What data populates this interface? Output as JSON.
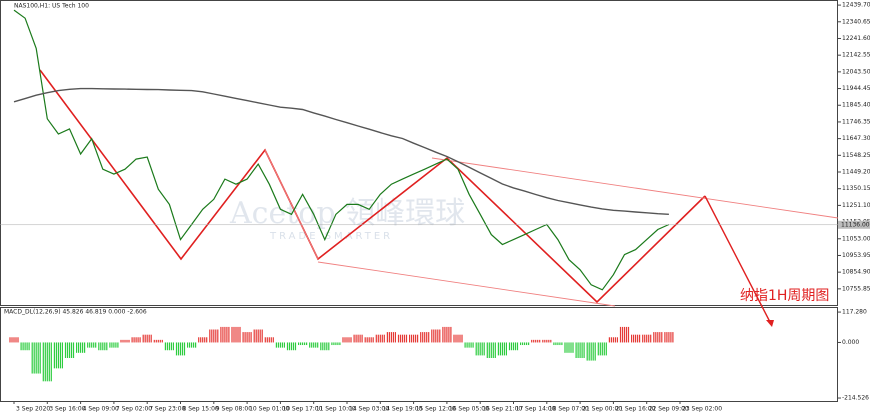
{
  "chart_data": [
    {
      "type": "line",
      "title": "NAS100,H1:  US Tech 100",
      "watermark": "Acetop 領峰環球",
      "watermark_sub": "TRADE SMARTER",
      "annotation": "纳指1H周期图",
      "categories": [
        "3 Sep 2020",
        null,
        null,
        "3 Sep 16:00",
        null,
        null,
        "4 Sep 09:00",
        null,
        null,
        "7 Sep 02:00",
        null,
        null,
        "7 Sep 23:00",
        null,
        null,
        "8 Sep 15:00",
        null,
        null,
        "9 Sep 08:00",
        null,
        null,
        "10 Sep 01:00",
        null,
        null,
        "10 Sep 17:00",
        null,
        null,
        "11 Sep 10:00",
        null,
        null,
        "14 Sep 03:00",
        null,
        null,
        "14 Sep 19:00",
        null,
        null,
        "15 Sep 12:00",
        null,
        null,
        "16 Sep 05:00",
        null,
        null,
        "16 Sep 21:00",
        null,
        null,
        "17 Sep 14:00",
        null,
        null,
        "18 Sep 07:00",
        null,
        null,
        "21 Sep 00:00",
        null,
        null,
        "21 Sep 16:00",
        null,
        null,
        "22 Sep 09:00",
        null,
        null,
        "23 Sep 02:00",
        null,
        null
      ],
      "series": [
        {
          "color": "#1b7a1b",
          "values": [
            12410,
            12362,
            12183,
            11765,
            11675,
            11705,
            11556,
            11646,
            11466,
            11437,
            11466,
            11526,
            11538,
            11347,
            11257,
            11048,
            11138,
            11228,
            11287,
            11407,
            11377,
            11407,
            11496,
            11377,
            11228,
            11198,
            11317,
            11198,
            11048,
            11198,
            11257,
            11257,
            11228,
            11317,
            11377,
            11407,
            11437,
            11466,
            11496,
            11526,
            11466,
            11317,
            11198,
            11078,
            11019,
            11048,
            11078,
            11108,
            11138,
            11048,
            10929,
            10869,
            10780,
            10750,
            10840,
            10959,
            10989,
            11048,
            11108,
            11138,
            null,
            null,
            null
          ]
        },
        {
          "color": "#555555",
          "values": [
            11866,
            11885,
            11905,
            11920,
            11932,
            11940,
            11944,
            11944,
            11943,
            11942,
            11941,
            11940,
            11939,
            11938,
            11936,
            11934,
            11932,
            11925,
            11912,
            11899,
            11886,
            11873,
            11860,
            11847,
            11834,
            11828,
            11820,
            11800,
            11781,
            11761,
            11742,
            11722,
            11703,
            11683,
            11664,
            11648,
            11620,
            11594,
            11567,
            11541,
            11510,
            11477,
            11444,
            11411,
            11378,
            11355,
            11336,
            11316,
            11297,
            11280,
            11267,
            11254,
            11241,
            11230,
            11222,
            11217,
            11212,
            11207,
            11202,
            11198,
            null,
            null,
            null
          ]
        }
      ],
      "ylim": [
        10660,
        12464
      ],
      "yticks": [
        {
          "value": 12439.7,
          "label": "12439.70"
        },
        {
          "value": 12340.65,
          "label": "12340.65"
        },
        {
          "value": 12241.6,
          "label": "12241.60"
        },
        {
          "value": 12142.55,
          "label": "12142.55"
        },
        {
          "value": 12043.5,
          "label": "12043.50"
        },
        {
          "value": 11944.45,
          "label": "11944.45"
        },
        {
          "value": 11845.4,
          "label": "11845.40"
        },
        {
          "value": 11746.35,
          "label": "11746.35"
        },
        {
          "value": 11647.3,
          "label": "11647.30"
        },
        {
          "value": 11548.25,
          "label": "11548.25"
        },
        {
          "value": 11449.2,
          "label": "11449.20"
        },
        {
          "value": 11350.15,
          "label": "11350.15"
        },
        {
          "value": 11251.1,
          "label": "11251.10"
        },
        {
          "value": 11152.05,
          "label": "11152.05"
        },
        {
          "value": 11053,
          "label": "11053.00"
        },
        {
          "value": 10953.95,
          "label": "10953.95"
        },
        {
          "value": 10854.9,
          "label": "10854.90"
        },
        {
          "value": 10755.85,
          "label": "10755.85"
        }
      ],
      "last_price": {
        "value": 11136,
        "label": "11136.00"
      }
    },
    {
      "type": "bar",
      "title": "MACD_DL(12,26,9) 45.826 46.819 0.000 -2.606",
      "up_color": "#e53935",
      "down_color": "#2ecc40",
      "values": [
        20,
        -30,
        -120,
        -150,
        -100,
        -60,
        -40,
        -20,
        -30,
        -20,
        10,
        20,
        30,
        10,
        -30,
        -50,
        -20,
        20,
        50,
        60,
        60,
        40,
        50,
        20,
        -20,
        -30,
        -10,
        -20,
        -30,
        -10,
        20,
        30,
        20,
        30,
        40,
        30,
        30,
        40,
        50,
        60,
        30,
        -20,
        -50,
        -60,
        -50,
        -30,
        -10,
        10,
        10,
        -10,
        -40,
        -60,
        -70,
        -50,
        20,
        60,
        30,
        30,
        40,
        40,
        null,
        null,
        null
      ],
      "ylim": [
        -226,
        133
      ],
      "yticks": [
        {
          "value": 117.28,
          "label": "117.280"
        },
        {
          "value": 0,
          "label": "0.000"
        },
        {
          "value": -214.526,
          "label": "-214.526"
        }
      ]
    }
  ]
}
